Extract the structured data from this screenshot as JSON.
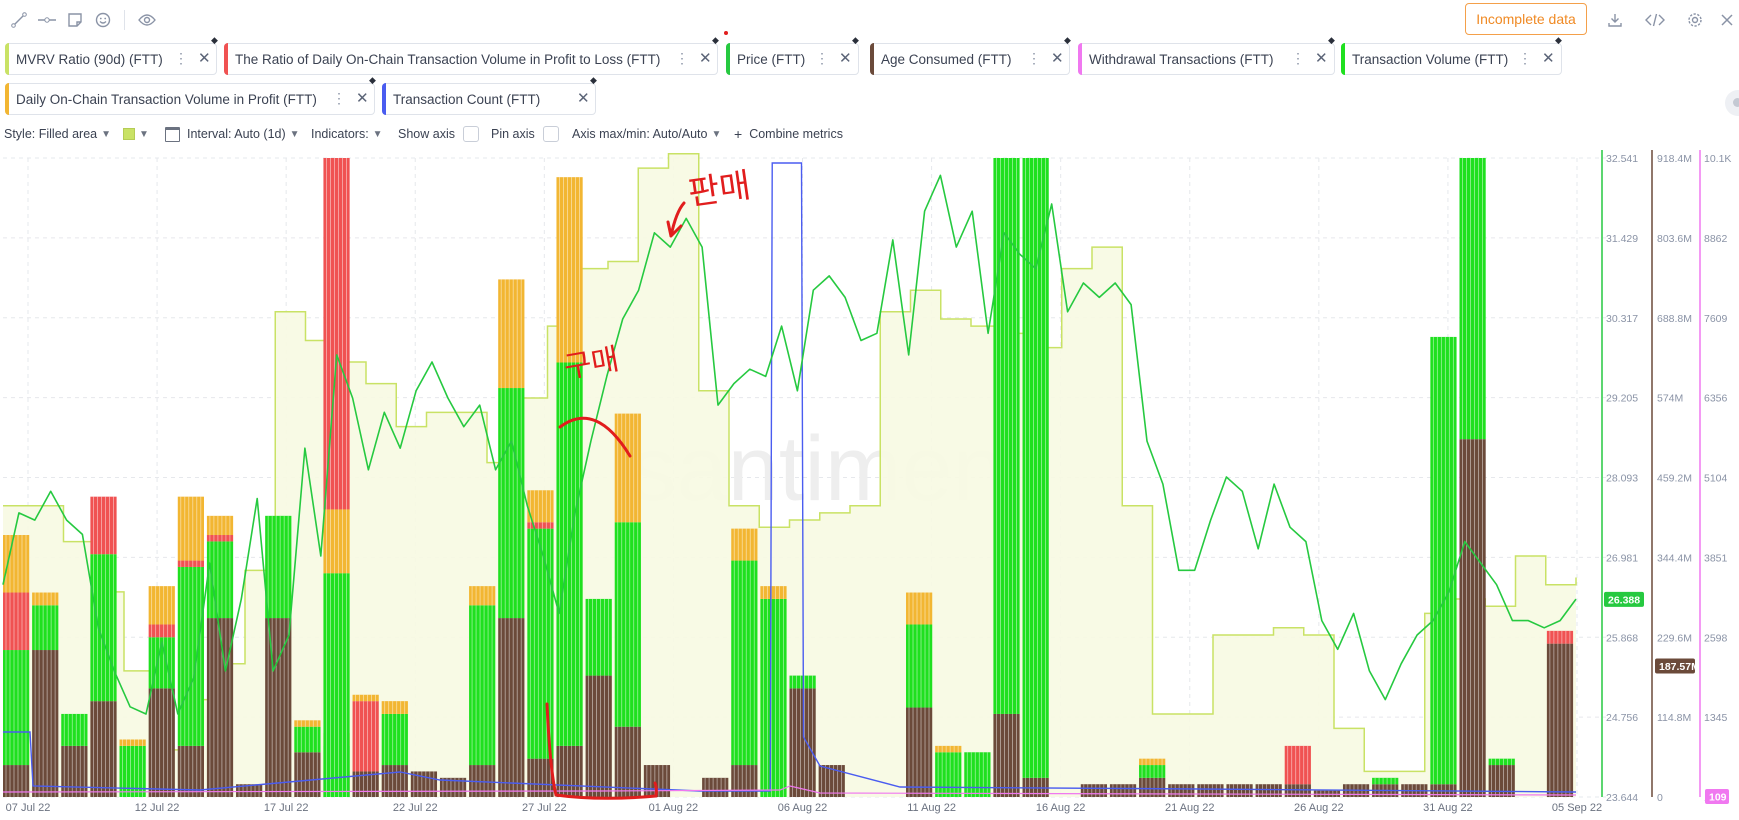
{
  "toolbar": {
    "icons": [
      "line-tool-icon",
      "segment-tool-icon",
      "note-icon",
      "emoji-icon",
      "eye-icon"
    ],
    "incomplete_label": "Incomplete data",
    "right_icons": [
      "download-icon",
      "embed-code-icon",
      "settings-gear-icon",
      "close-icon"
    ]
  },
  "metrics": [
    {
      "label": "MVRV Ratio (90d) (FTT)",
      "color": "#c9e265"
    },
    {
      "label": "The Ratio of Daily On-Chain Transaction Volume in Profit to Loss (FTT)",
      "color": "#f05252"
    },
    {
      "label": "Price (FTT)",
      "color": "#26c940"
    },
    {
      "label": "Age Consumed (FTT)",
      "color": "#6b4a3a"
    },
    {
      "label": "Withdrawal Transactions (FTT)",
      "color": "#f078f0"
    },
    {
      "label": "Transaction Volume (FTT)",
      "color": "#1fe01f"
    },
    {
      "label": "Daily On-Chain Transaction Volume in Profit (FTT)",
      "color": "#f2b632"
    },
    {
      "label": "Transaction Count (FTT)",
      "color": "#4a5cf0"
    }
  ],
  "options": {
    "style": "Style: Filled area",
    "interval": "Interval: Auto (1d)",
    "indicators": "Indicators:",
    "show_axis": "Show axis",
    "pin_axis": "Pin axis",
    "axis_minmax": "Axis max/min: Auto/Auto",
    "combine": "Combine metrics"
  },
  "watermark": "·santiment·",
  "annotations": {
    "sell": "판매",
    "buy": "구매"
  },
  "chart_data": {
    "type": "area",
    "x_ticks": [
      "07 Jul 22",
      "12 Jul 22",
      "17 Jul 22",
      "22 Jul 22",
      "27 Jul 22",
      "01 Aug 22",
      "06 Aug 22",
      "11 Aug 22",
      "16 Aug 22",
      "21 Aug 22",
      "26 Aug 22",
      "31 Aug 22",
      "05 Sep 22"
    ],
    "axes": [
      {
        "name": "Price (FTT)",
        "color": "#26c940",
        "ticks": [
          "32.541",
          "31.429",
          "30.317",
          "29.205",
          "28.093",
          "26.981",
          "25.868",
          "24.756",
          "23.644"
        ],
        "current": "26.388",
        "range": [
          23.644,
          32.541
        ]
      },
      {
        "name": "Age Consumed (FTT)",
        "color": "#6b4a3a",
        "ticks": [
          "918.4M",
          "803.6M",
          "688.8M",
          "574M",
          "459.2M",
          "344.4M",
          "229.6M",
          "114.8M",
          "0"
        ],
        "current": "187.57M",
        "range": [
          0,
          918400000
        ]
      },
      {
        "name": "Withdrawal Transactions (FTT)",
        "color": "#f078f0",
        "ticks": [
          "10.1K",
          "8862",
          "7609",
          "6356",
          "5104",
          "3851",
          "2598",
          "1345",
          "109"
        ],
        "current": "109",
        "range": [
          109,
          10100
        ]
      }
    ],
    "price": [
      26.6,
      27.6,
      27.5,
      27.9,
      27.5,
      27.3,
      26.0,
      25.4,
      24.9,
      24.8,
      25.8,
      24.8,
      25.3,
      26.9,
      25.4,
      26.4,
      27.8,
      25.4,
      25.9,
      28.5,
      27.0,
      29.8,
      29.2,
      28.2,
      29.0,
      28.5,
      29.3,
      29.7,
      29.2,
      28.8,
      29.1,
      28.2,
      28.6,
      27.7,
      27.0,
      26.2,
      27.6,
      28.6,
      29.5,
      30.3,
      30.7,
      31.5,
      31.3,
      31.7,
      31.3,
      29.1,
      29.4,
      29.6,
      29.5,
      30.2,
      29.3,
      30.7,
      30.9,
      30.6,
      30.0,
      30.1,
      31.4,
      29.8,
      31.8,
      32.3,
      31.3,
      31.8,
      30.1,
      31.5,
      31.2,
      31.0,
      31.9,
      30.4,
      30.8,
      30.6,
      30.8,
      30.5,
      28.6,
      28.0,
      26.8,
      26.8,
      27.5,
      28.1,
      27.9,
      27.1,
      28.0,
      27.4,
      27.2,
      26.1,
      25.7,
      26.2,
      25.4,
      25.0,
      25.5,
      25.9,
      26.1,
      26.5,
      27.2,
      26.9,
      26.6,
      26.1,
      26.1,
      26.0,
      26.1,
      26.4
    ],
    "mvrv": [
      27.7,
      27.7,
      27.2,
      26.5,
      25.4,
      24.3,
      25.0,
      25.5,
      26.8,
      30.4,
      30.0,
      29.7,
      29.4,
      28.8,
      29.0,
      29.0,
      28.3,
      29.2,
      30.2,
      31.0,
      31.1,
      32.4,
      32.6,
      29.3,
      27.7,
      27.4,
      27.5,
      27.6,
      27.7,
      30.4,
      30.7,
      30.3,
      30.2,
      30.1,
      29.9,
      31.0,
      31.3,
      27.7,
      24.8,
      24.8,
      25.9,
      25.9,
      26.0,
      25.9,
      24.6,
      24.0,
      24.0,
      26.2,
      26.4,
      26.3,
      27.0,
      26.6,
      26.7
    ],
    "age_consumed": [
      0.05,
      0.23,
      0.08,
      0.15,
      0.0,
      0.17,
      0.08,
      0.28,
      0.02,
      0.28,
      0.07,
      0.04,
      0.04,
      0.05,
      0.04,
      0.03,
      0.05,
      0.28,
      0.06,
      0.08,
      0.19,
      0.11,
      0.05,
      0.0,
      0.03,
      0.05,
      0.0,
      0.17,
      0.05,
      0.0,
      0.0,
      0.14,
      0.0,
      0.0,
      0.13,
      0.03,
      0.0,
      0.02,
      0.02,
      0.03,
      0.02,
      0.02,
      0.02,
      0.02,
      0.02,
      0.01,
      0.02,
      0.02,
      0.02,
      0.02,
      0.56,
      0.05,
      0.0,
      0.24
    ],
    "tx_volume": [
      0.18,
      0.07,
      0.05,
      0.23,
      0.08,
      0.08,
      0.28,
      0.12,
      0.0,
      0.16,
      0.04,
      0.04,
      0.0,
      0.08,
      0.0,
      0.0,
      0.25,
      0.36,
      0.36,
      0.6,
      0.12,
      0.32,
      0.0,
      0.0,
      0.0,
      0.32,
      0.31,
      0.02,
      0.0,
      0.0,
      0.0,
      0.13,
      0.07,
      0.07,
      1.0,
      1.0,
      0.0,
      0.0,
      0.0,
      0.02,
      0.0,
      0.0,
      0.0,
      0.0,
      0.0,
      0.0,
      0.0,
      0.01,
      0.0,
      0.7,
      0.64,
      0.01,
      0.0
    ],
    "tx_in_profit": [
      0.09,
      0.02,
      0.0,
      0.0,
      0.01,
      0.06,
      0.1,
      0.03,
      0.0,
      0.0,
      0.01,
      0.02,
      0.01,
      0.02,
      0.0,
      0.0,
      0.03,
      0.17,
      0.05,
      0.29,
      0.0,
      0.17,
      0.0,
      0.0,
      0.0,
      0.05,
      0.02,
      0.0,
      0.0,
      0.0,
      0.0,
      0.05,
      0.01,
      0.0,
      0.0,
      0.02,
      0.0,
      0.0,
      0.0,
      0.01,
      0.0,
      0.0,
      0.0,
      0.0,
      0.0,
      0.0,
      0.0,
      0.0,
      0.0,
      0.0,
      0.0,
      0.0,
      0.0
    ],
    "profit_loss_ratio": [
      0.09,
      0.0,
      0.0,
      0.09,
      0.0,
      0.02,
      0.01,
      0.01,
      0.0,
      0.0,
      0.0,
      0.0,
      0.11,
      0.0,
      0.0,
      0.0,
      0.0,
      0.0,
      0.01,
      0.0,
      0.0,
      0.0,
      0.0,
      0.0,
      0.0,
      0.0,
      0.0,
      0.0,
      0.0,
      0.0,
      0.0,
      0.0,
      0.0,
      0.0,
      0.0,
      0.0,
      0.0,
      0.0,
      0.0,
      0.0,
      0.0,
      0.0,
      0.0,
      0.0,
      0.06,
      0.0,
      0.0,
      0.0,
      0.0,
      0.0,
      0.0,
      0.0,
      0.0,
      0.02
    ],
    "tall_red_index": 11,
    "tx_count_spike": {
      "from": "05 Aug 22",
      "to": "06 Aug 22",
      "level": 1.0
    }
  }
}
